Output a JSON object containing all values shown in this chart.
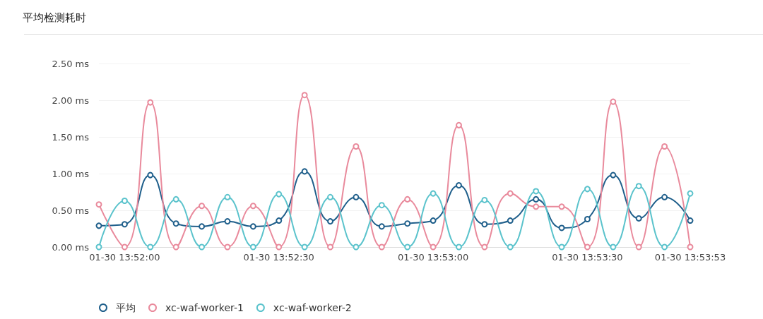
{
  "chart_data": {
    "type": "line",
    "title": "平均检测耗时",
    "categories": [
      null,
      "01-30 13:52:00",
      null,
      null,
      null,
      null,
      null,
      "01-30 13:52:30",
      null,
      null,
      null,
      null,
      null,
      "01-30 13:53:00",
      null,
      null,
      null,
      null,
      null,
      "01-30 13:53:30",
      null,
      null,
      null,
      "01-30 13:53:53"
    ],
    "series": [
      {
        "name": "平均",
        "color": "#1f5f8b",
        "values": [
          0.29,
          0.31,
          0.98,
          0.32,
          0.28,
          0.35,
          0.28,
          0.36,
          1.03,
          0.35,
          0.68,
          0.28,
          0.32,
          0.36,
          0.84,
          0.31,
          0.36,
          0.65,
          0.26,
          0.38,
          0.98,
          0.39,
          0.68,
          0.36
        ]
      },
      {
        "name": "xc-waf-worker-1",
        "color": "#e98a9c",
        "values": [
          0.58,
          0,
          1.97,
          0,
          0.56,
          0,
          0.56,
          0,
          2.07,
          0,
          1.37,
          0,
          0.65,
          0,
          1.66,
          0,
          0.73,
          0.55,
          0.55,
          0,
          1.98,
          0,
          1.37,
          0
        ]
      },
      {
        "name": "xc-waf-worker-2",
        "color": "#5bc3cc",
        "values": [
          0,
          0.63,
          0,
          0.65,
          0,
          0.68,
          0,
          0.72,
          0,
          0.68,
          0,
          0.57,
          0,
          0.73,
          0,
          0.64,
          0,
          0.76,
          0,
          0.79,
          0,
          0.83,
          0,
          0.73
        ]
      }
    ],
    "ylim": [
      0,
      2.5
    ],
    "yticks": [
      {
        "value": 0,
        "label": "0.00 ms"
      },
      {
        "value": 0.5,
        "label": "0.50 ms"
      },
      {
        "value": 1,
        "label": "1.00 ms"
      },
      {
        "value": 1.5,
        "label": "1.50 ms"
      },
      {
        "value": 2,
        "label": "2.00 ms"
      },
      {
        "value": 2.5,
        "label": "2.50 ms"
      }
    ],
    "grid": "y",
    "legend": "bottom left",
    "marker": "circle",
    "line_style": "solid"
  }
}
